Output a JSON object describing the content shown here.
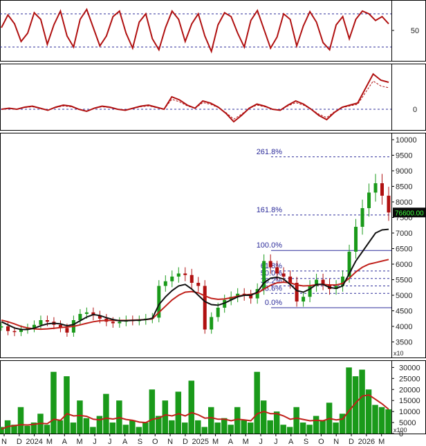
{
  "colors": {
    "price_line": "#b01010",
    "ma_black": "#111111",
    "ma_red": "#c0201a",
    "volume_bar": "#1a9a1a",
    "fib_line": "#2b2b9a",
    "current_badge_bg": "#0a0a0a",
    "current_badge_fg": "#3cff3c"
  },
  "chart_data": [
    {
      "type": "line",
      "panel": "oscillator-1",
      "ylim": [
        0,
        100
      ],
      "reference_levels": [
        80,
        20
      ],
      "y_ticks": [
        "50"
      ],
      "series": [
        {
          "values": [
            55,
            78,
            62,
            30,
            45,
            82,
            70,
            25,
            60,
            85,
            40,
            20,
            70,
            88,
            55,
            22,
            40,
            75,
            85,
            45,
            18,
            65,
            80,
            35,
            15,
            55,
            85,
            70,
            30,
            62,
            80,
            40,
            12,
            60,
            82,
            75,
            45,
            20,
            68,
            86,
            52,
            18,
            38,
            80,
            70,
            22,
            58,
            84,
            65,
            28,
            15,
            60,
            75,
            35,
            70,
            85,
            80,
            68,
            75,
            62
          ]
        }
      ]
    },
    {
      "type": "line",
      "panel": "oscillator-2",
      "y_ticks": [
        "0"
      ],
      "series": [
        {
          "values": [
            0,
            1,
            0,
            2,
            3,
            1,
            -1,
            2,
            4,
            3,
            0,
            -2,
            1,
            3,
            2,
            0,
            -1,
            1,
            3,
            4,
            2,
            0,
            12,
            9,
            4,
            1,
            8,
            6,
            2,
            -4,
            -12,
            -6,
            1,
            5,
            3,
            0,
            -1,
            4,
            8,
            5,
            0,
            -6,
            -10,
            -3,
            2,
            4,
            6,
            20,
            34,
            28,
            26
          ]
        }
      ]
    },
    {
      "type": "candlestick",
      "panel": "price",
      "ylim": [
        3000,
        10000
      ],
      "y_ticks": [
        "3500",
        "4000",
        "4500",
        "5000",
        "5500",
        "6000",
        "6500",
        "7000",
        "7500",
        "8000",
        "8500",
        "9000",
        "9500",
        "10000"
      ],
      "y_multiplier": "x10",
      "current_value_label": "76600.00",
      "x_tick_labels": [
        "N",
        "D",
        "2024",
        "M",
        "A",
        "M",
        "J",
        "J",
        "A",
        "S",
        "O",
        "N",
        "D",
        "2025",
        "M",
        "A",
        "M",
        "J",
        "J",
        "A",
        "S",
        "O",
        "N",
        "D",
        "2026",
        "M"
      ],
      "fibonacci_levels": [
        {
          "label": "261.8%",
          "value": 9450
        },
        {
          "label": "161.8%",
          "value": 7580
        },
        {
          "label": "100.0%",
          "value": 6440
        },
        {
          "label": "61.8%",
          "value": 5780
        },
        {
          "label": "50.0%",
          "value": 5540
        },
        {
          "label": "38.2%",
          "value": 5300
        },
        {
          "label": "23.6%",
          "value": 5060
        },
        {
          "label": "0.0%",
          "value": 4600
        }
      ],
      "close": [
        4000,
        3850,
        3820,
        3900,
        3950,
        4050,
        4200,
        4150,
        4050,
        3950,
        3800,
        4200,
        4400,
        4450,
        4350,
        4250,
        4150,
        4100,
        4150,
        4200,
        4180,
        4200,
        4250,
        4280,
        5300,
        5450,
        5600,
        5700,
        5650,
        5400,
        5300,
        3900,
        4300,
        4600,
        4850,
        4950,
        5050,
        5000,
        4900,
        5200,
        6100,
        5900,
        5700,
        5600,
        5400,
        4800,
        4950,
        5300,
        5500,
        5350,
        5200,
        5300,
        5600,
        6400,
        7200,
        7800,
        8300,
        8600,
        8200,
        7660
      ],
      "ma_short": [
        4150,
        4050,
        3950,
        3900,
        3900,
        3940,
        4020,
        4080,
        4100,
        4080,
        4020,
        4060,
        4180,
        4300,
        4380,
        4350,
        4280,
        4220,
        4180,
        4180,
        4190,
        4200,
        4220,
        4260,
        4700,
        4950,
        5150,
        5300,
        5350,
        5200,
        5000,
        4800,
        4700,
        4680,
        4750,
        4850,
        4950,
        5000,
        5000,
        5100,
        5400,
        5550,
        5580,
        5520,
        5350,
        5150,
        5100,
        5200,
        5350,
        5350,
        5250,
        5220,
        5300,
        5700,
        6100,
        6400,
        6700,
        7000,
        7100,
        7120
      ],
      "ma_long": [
        4200,
        4150,
        4080,
        4000,
        3950,
        3920,
        3910,
        3920,
        3940,
        3960,
        3980,
        4000,
        4050,
        4100,
        4150,
        4180,
        4190,
        4190,
        4190,
        4190,
        4200,
        4210,
        4220,
        4240,
        4450,
        4650,
        4850,
        5000,
        5100,
        5120,
        5080,
        4980,
        4900,
        4870,
        4880,
        4920,
        4970,
        5010,
        5030,
        5070,
        5200,
        5320,
        5400,
        5420,
        5400,
        5330,
        5300,
        5310,
        5340,
        5350,
        5330,
        5330,
        5380,
        5550,
        5750,
        5900,
        6000,
        6050,
        6100,
        6150
      ]
    },
    {
      "type": "bar",
      "panel": "volume",
      "ylim": [
        0,
        32000
      ],
      "y_ticks": [
        "0",
        "5000",
        "10000",
        "15000",
        "20000",
        "25000",
        "30000"
      ],
      "y_multiplier": "x100",
      "values": [
        3000,
        6000,
        4000,
        12000,
        3500,
        5000,
        9000,
        4000,
        28000,
        6000,
        26000,
        5000,
        15000,
        7000,
        3000,
        8000,
        18000,
        5000,
        15000,
        4000,
        6000,
        3000,
        5000,
        20000,
        8000,
        15000,
        6000,
        19000,
        5000,
        24000,
        6000,
        3000,
        12000,
        5000,
        7000,
        4000,
        12000,
        6000,
        5000,
        28000,
        15000,
        6000,
        10000,
        4000,
        3000,
        12000,
        5000,
        4000,
        8000,
        6000,
        14000,
        5000,
        9000,
        30000,
        26000,
        29000,
        20000,
        13000,
        12000,
        11000
      ],
      "ma_values": [
        2000,
        3200,
        3600,
        4000,
        3900,
        4200,
        4600,
        4500,
        6500,
        6000,
        9000,
        8000,
        8200,
        7800,
        6500,
        6200,
        7000,
        6600,
        7200,
        6400,
        6000,
        5200,
        5000,
        6500,
        7000,
        8500,
        8000,
        9000,
        8000,
        9500,
        8500,
        7000,
        7200,
        6500,
        6500,
        5800,
        6500,
        6200,
        5800,
        9000,
        10000,
        9000,
        9000,
        8000,
        6500,
        7000,
        6400,
        5800,
        6000,
        5800,
        6800,
        6200,
        6600,
        10500,
        14000,
        17000,
        17500,
        15500,
        13500,
        11000
      ]
    }
  ]
}
